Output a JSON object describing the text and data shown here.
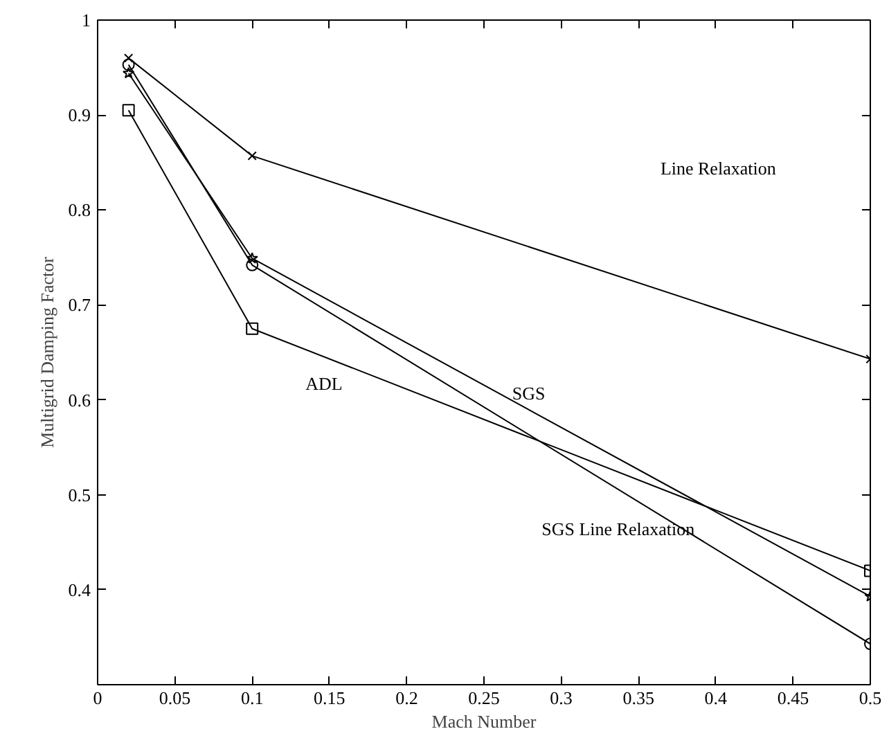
{
  "chart_data": {
    "type": "line",
    "xlabel": "Mach Number",
    "ylabel": "Multigrid Damping Factor",
    "x": [
      0.02,
      0.1,
      0.5
    ],
    "series": [
      {
        "color": "#000000",
        "marker": "cross",
        "values": [
          0.96,
          0.857,
          0.643
        ]
      },
      {
        "color": "#000000",
        "marker": "circle",
        "values": [
          0.953,
          0.742,
          0.343
        ]
      },
      {
        "color": "#000000",
        "marker": "star",
        "values": [
          0.944,
          0.749,
          0.393
        ]
      },
      {
        "color": "#000000",
        "marker": "square",
        "values": [
          0.905,
          0.675,
          0.42
        ]
      }
    ],
    "xlim": [
      0,
      0.5
    ],
    "ylim": [
      0.3,
      1
    ],
    "xticks": [
      0,
      0.05,
      0.1,
      0.15,
      0.2,
      0.25,
      0.3,
      0.35,
      0.4,
      0.45,
      0.5
    ],
    "yticks": [
      0.4,
      0.5,
      0.6,
      0.7,
      0.8,
      0.9,
      1
    ],
    "grid": false,
    "line_style": "solid",
    "annotations": [
      "Line Relaxation",
      "ADL",
      "SGS",
      "SGS Line Relaxation"
    ]
  }
}
